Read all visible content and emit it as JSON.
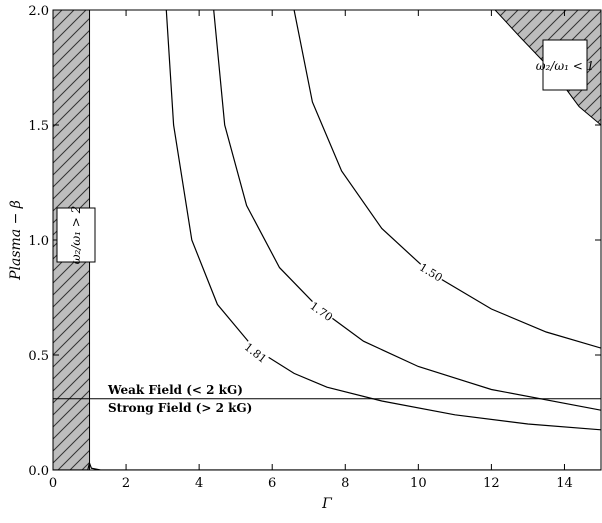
{
  "chart_data": {
    "type": "contour",
    "title": "",
    "xlabel": "Γ",
    "ylabel": "Plasma − β",
    "xlim": [
      0,
      15
    ],
    "ylim": [
      0,
      2.0
    ],
    "x_ticks": [
      "0",
      "2",
      "4",
      "6",
      "8",
      "10",
      "12",
      "14"
    ],
    "y_ticks": [
      "0.0",
      "0.5",
      "1.0",
      "1.5",
      "2.0"
    ],
    "grid": false,
    "contours": [
      {
        "label": "1.81",
        "points": [
          [
            3.1,
            2.0
          ],
          [
            3.3,
            1.5
          ],
          [
            3.8,
            1.0
          ],
          [
            4.5,
            0.72
          ],
          [
            5.5,
            0.53
          ],
          [
            6.6,
            0.42
          ],
          [
            7.5,
            0.36
          ],
          [
            9.0,
            0.3
          ],
          [
            11.0,
            0.24
          ],
          [
            13.0,
            0.2
          ],
          [
            15.0,
            0.175
          ]
        ]
      },
      {
        "label": "1.70",
        "points": [
          [
            4.4,
            2.0
          ],
          [
            4.7,
            1.5
          ],
          [
            5.3,
            1.15
          ],
          [
            6.2,
            0.88
          ],
          [
            7.3,
            0.7
          ],
          [
            8.5,
            0.56
          ],
          [
            10.0,
            0.45
          ],
          [
            12.0,
            0.35
          ],
          [
            15.0,
            0.26
          ]
        ]
      },
      {
        "label": "1.50",
        "points": [
          [
            6.6,
            2.0
          ],
          [
            7.1,
            1.6
          ],
          [
            7.9,
            1.3
          ],
          [
            9.0,
            1.05
          ],
          [
            10.3,
            0.86
          ],
          [
            12.0,
            0.7
          ],
          [
            13.5,
            0.6
          ],
          [
            15.0,
            0.53
          ]
        ]
      }
    ],
    "shaded_regions": [
      {
        "name": "left",
        "x_range": [
          0,
          1.0
        ],
        "y_range": [
          0,
          2.0
        ]
      },
      {
        "name": "top-right",
        "boundary": [
          [
            12.1,
            2.0
          ],
          [
            12.8,
            1.88
          ],
          [
            13.7,
            1.73
          ],
          [
            14.4,
            1.58
          ],
          [
            15.0,
            1.5
          ]
        ]
      }
    ],
    "horizontal_line": {
      "y": 0.31
    },
    "boundary_floor": [
      [
        0.0,
        0.0
      ],
      [
        0.95,
        0.0
      ],
      [
        1.0,
        0.03
      ],
      [
        1.05,
        0.008
      ],
      [
        1.3,
        0.0
      ],
      [
        15.0,
        0.0
      ]
    ],
    "annotations": {
      "weak": "Weak Field (< 2 kG)",
      "strong": "Strong Field (> 2 kG)",
      "box_right": "ω₂/ω₁ < 1",
      "box_left": "ω₂/ω₁ > 2"
    },
    "colors": {
      "hatch_fill": "#bdbdbd",
      "line": "#000000"
    }
  }
}
